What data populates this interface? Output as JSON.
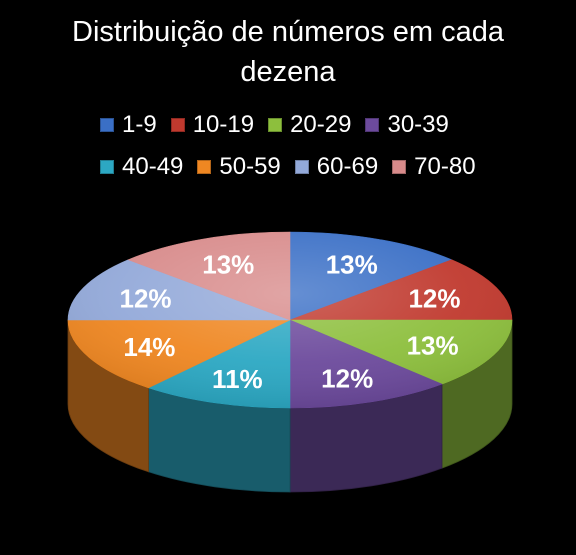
{
  "chart_data": {
    "type": "pie",
    "title": "Distribuição de números em cada dezena",
    "title_lines": [
      "Distribuição de números em cada",
      "dezena"
    ],
    "categories": [
      "1-9",
      "10-19",
      "20-29",
      "30-39",
      "40-49",
      "50-59",
      "60-69",
      "70-80"
    ],
    "values": [
      13,
      12,
      13,
      12,
      11,
      14,
      12,
      13
    ],
    "labels": [
      "13%",
      "12%",
      "13%",
      "12%",
      "11%",
      "14%",
      "12%",
      "13%"
    ],
    "colors": [
      "#3A6FC6",
      "#C0392E",
      "#8DBF3D",
      "#6C4A9C",
      "#2CA8C3",
      "#EF8722",
      "#93A9D9",
      "#D88B8B"
    ],
    "legend_position": "top",
    "style": "3d"
  }
}
